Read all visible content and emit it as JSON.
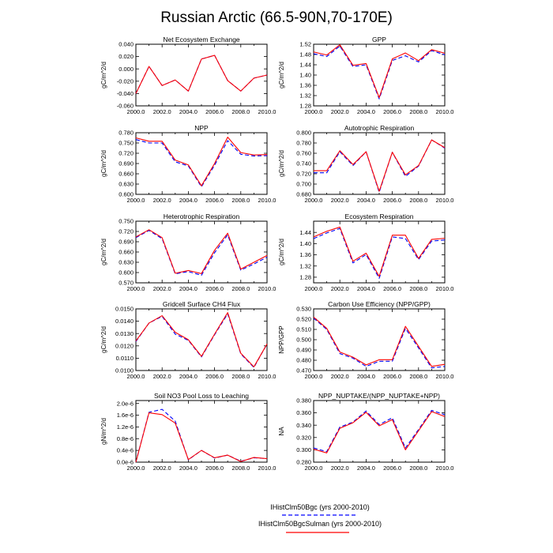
{
  "title": "Russian Arctic (66.5-90N,70-170E)",
  "colors": {
    "bgc": "#0000ff",
    "sulman": "#ff0000",
    "axis": "#000000"
  },
  "legend": {
    "items": [
      {
        "label": "IHistClm50Bgc (yrs 2000-2010)",
        "color": "#0000ff",
        "dash": true
      },
      {
        "label": "IHistClm50BgcSulman (yrs 2000-2010)",
        "color": "#ff0000",
        "dash": false
      }
    ]
  },
  "chart_data": [
    {
      "type": "line",
      "title": "Net Ecosystem Exchange",
      "ylabel": "gC/m^2/d",
      "xlim": [
        2000,
        2010
      ],
      "ylim": [
        -0.06,
        0.04
      ],
      "yticks": [
        "-0.060",
        "-0.040",
        "-0.020",
        "0.000",
        "0.020",
        "0.040"
      ],
      "xticks": [
        "2000.0",
        "2002.0",
        "2004.0",
        "2006.0",
        "2008.0",
        "2010.0"
      ],
      "x": [
        2000,
        2001,
        2002,
        2003,
        2004,
        2005,
        2006,
        2007,
        2008,
        2009,
        2010
      ],
      "series": [
        {
          "values": [
            -0.04,
            0.004,
            -0.027,
            -0.018,
            -0.036,
            0.016,
            0.022,
            -0.019,
            -0.036,
            -0.015,
            -0.01
          ]
        },
        {
          "values": [
            -0.04,
            0.004,
            -0.027,
            -0.018,
            -0.036,
            0.016,
            0.022,
            -0.019,
            -0.036,
            -0.015,
            -0.01
          ]
        }
      ]
    },
    {
      "type": "line",
      "title": "GPP",
      "ylabel": "gC/m^2/d",
      "xlim": [
        2000,
        2010
      ],
      "ylim": [
        1.28,
        1.52
      ],
      "yticks": [
        "1.28",
        "1.32",
        "1.36",
        "1.40",
        "1.44",
        "1.48",
        "1.52"
      ],
      "xticks": [
        "2000.0",
        "2002.0",
        "2004.0",
        "2006.0",
        "2008.0",
        "2010.0"
      ],
      "x": [
        2000,
        2001,
        2002,
        2003,
        2004,
        2005,
        2006,
        2007,
        2008,
        2009,
        2010
      ],
      "series": [
        {
          "values": [
            1.483,
            1.472,
            1.513,
            1.433,
            1.44,
            1.307,
            1.457,
            1.475,
            1.451,
            1.495,
            1.479
          ]
        },
        {
          "values": [
            1.49,
            1.478,
            1.518,
            1.438,
            1.445,
            1.312,
            1.463,
            1.486,
            1.456,
            1.499,
            1.485
          ]
        }
      ]
    },
    {
      "type": "line",
      "title": "NPP",
      "ylabel": "gC/m^2/d",
      "xlim": [
        2000,
        2010
      ],
      "ylim": [
        0.6,
        0.78
      ],
      "yticks": [
        "0.600",
        "0.630",
        "0.660",
        "0.690",
        "0.720",
        "0.750",
        "0.780"
      ],
      "xticks": [
        "2000.0",
        "2002.0",
        "2004.0",
        "2006.0",
        "2008.0",
        "2010.0"
      ],
      "x": [
        2000,
        2001,
        2002,
        2003,
        2004,
        2005,
        2006,
        2007,
        2008,
        2009,
        2010
      ],
      "series": [
        {
          "values": [
            0.76,
            0.75,
            0.75,
            0.695,
            0.683,
            0.622,
            0.685,
            0.757,
            0.717,
            0.712,
            0.713
          ]
        },
        {
          "values": [
            0.765,
            0.755,
            0.755,
            0.7,
            0.686,
            0.625,
            0.69,
            0.767,
            0.722,
            0.715,
            0.716
          ]
        }
      ]
    },
    {
      "type": "line",
      "title": "Autotrophic Respiration",
      "ylabel": "gC/m^2/d",
      "xlim": [
        2000,
        2010
      ],
      "ylim": [
        0.68,
        0.8
      ],
      "yticks": [
        "0.680",
        "0.700",
        "0.720",
        "0.740",
        "0.760",
        "0.780",
        "0.800"
      ],
      "xticks": [
        "2000.0",
        "2002.0",
        "2004.0",
        "2006.0",
        "2008.0",
        "2010.0"
      ],
      "x": [
        2000,
        2001,
        2002,
        2003,
        2004,
        2005,
        2006,
        2007,
        2008,
        2009,
        2010
      ],
      "series": [
        {
          "values": [
            0.722,
            0.722,
            0.763,
            0.736,
            0.763,
            0.684,
            0.762,
            0.715,
            0.735,
            0.786,
            0.77
          ]
        },
        {
          "values": [
            0.726,
            0.726,
            0.765,
            0.738,
            0.763,
            0.686,
            0.762,
            0.718,
            0.736,
            0.786,
            0.771
          ]
        }
      ]
    },
    {
      "type": "line",
      "title": "Heterotrophic Respiration",
      "ylabel": "gC/m^2/d",
      "xlim": [
        2000,
        2010
      ],
      "ylim": [
        0.57,
        0.75
      ],
      "yticks": [
        "0.570",
        "0.600",
        "0.630",
        "0.660",
        "0.690",
        "0.720",
        "0.750"
      ],
      "xticks": [
        "2000.0",
        "2002.0",
        "2004.0",
        "2006.0",
        "2008.0",
        "2010.0"
      ],
      "x": [
        2000,
        2001,
        2002,
        2003,
        2004,
        2005,
        2006,
        2007,
        2008,
        2009,
        2010
      ],
      "series": [
        {
          "values": [
            0.702,
            0.723,
            0.699,
            0.596,
            0.603,
            0.592,
            0.658,
            0.71,
            0.607,
            0.625,
            0.645
          ]
        },
        {
          "values": [
            0.704,
            0.725,
            0.702,
            0.598,
            0.606,
            0.597,
            0.665,
            0.715,
            0.61,
            0.63,
            0.65
          ]
        }
      ]
    },
    {
      "type": "line",
      "title": "Ecosystem Respiration",
      "ylabel": "gC/m^2/d",
      "xlim": [
        2000,
        2010
      ],
      "ylim": [
        1.26,
        1.48
      ],
      "yticks": [
        "1.28",
        "1.32",
        "1.36",
        "1.40",
        "1.44"
      ],
      "xticks": [
        "2000.0",
        "2002.0",
        "2004.0",
        "2006.0",
        "2008.0",
        "2010.0"
      ],
      "x": [
        2000,
        2001,
        2002,
        2003,
        2004,
        2005,
        2006,
        2007,
        2008,
        2009,
        2010
      ],
      "series": [
        {
          "values": [
            1.418,
            1.438,
            1.454,
            1.331,
            1.361,
            1.276,
            1.424,
            1.418,
            1.343,
            1.409,
            1.413
          ]
        },
        {
          "values": [
            1.424,
            1.444,
            1.459,
            1.337,
            1.366,
            1.283,
            1.43,
            1.43,
            1.347,
            1.415,
            1.419
          ]
        }
      ]
    },
    {
      "type": "line",
      "title": "Gridcell Surface CH4 Flux",
      "ylabel": "gC/m^2/d",
      "xlim": [
        2000,
        2010
      ],
      "ylim": [
        0.01,
        0.015
      ],
      "yticks": [
        "0.0100",
        "0.0110",
        "0.0120",
        "0.0130",
        "0.0140",
        "0.0150"
      ],
      "xticks": [
        "2000.0",
        "2002.0",
        "2004.0",
        "2006.0",
        "2008.0",
        "2010.0"
      ],
      "x": [
        2000,
        2001,
        2002,
        2003,
        2004,
        2005,
        2006,
        2007,
        2008,
        2009,
        2010
      ],
      "series": [
        {
          "values": [
            0.01235,
            0.01385,
            0.0144,
            0.01295,
            0.01245,
            0.0111,
            0.0129,
            0.0146,
            0.01135,
            0.01025,
            0.01215
          ]
        },
        {
          "values": [
            0.0124,
            0.01385,
            0.01445,
            0.0131,
            0.0125,
            0.01115,
            0.01295,
            0.0147,
            0.0114,
            0.0103,
            0.01215
          ]
        }
      ]
    },
    {
      "type": "line",
      "title": "Carbon Use Efficiency (NPP/GPP)",
      "ylabel": "NPP/GPP",
      "xlim": [
        2000,
        2010
      ],
      "ylim": [
        0.47,
        0.53
      ],
      "yticks": [
        "0.470",
        "0.480",
        "0.490",
        "0.500",
        "0.510",
        "0.520",
        "0.530"
      ],
      "xticks": [
        "2000.0",
        "2002.0",
        "2004.0",
        "2006.0",
        "2008.0",
        "2010.0"
      ],
      "x": [
        2000,
        2001,
        2002,
        2003,
        2004,
        2005,
        2006,
        2007,
        2008,
        2009,
        2010
      ],
      "series": [
        {
          "values": [
            0.521,
            0.51,
            0.4865,
            0.482,
            0.474,
            0.479,
            0.479,
            0.511,
            0.492,
            0.4725,
            0.474
          ]
        },
        {
          "values": [
            0.522,
            0.511,
            0.488,
            0.483,
            0.4755,
            0.4805,
            0.4805,
            0.513,
            0.4935,
            0.474,
            0.476
          ]
        }
      ]
    },
    {
      "type": "line",
      "title": "Soil NO3 Pool Loss to Leaching",
      "ylabel": "gN/m^2/d",
      "xlim": [
        2000,
        2010
      ],
      "ylim": [
        0,
        2.1e-06
      ],
      "yticks": [
        "0.0e-6",
        "0.4e-6",
        "0.8e-6",
        "1.2e-6",
        "1.6e-6",
        "2.0e-6"
      ],
      "xticks": [
        "2000.0",
        "2002.0",
        "2004.0",
        "2006.0",
        "2008.0",
        "2010.0"
      ],
      "x": [
        2000,
        2001,
        2002,
        2003,
        2004,
        2005,
        2006,
        2007,
        2008,
        2009,
        2010
      ],
      "series": [
        {
          "values": [
            0.0,
            1.7e-06,
            1.8e-06,
            1.4e-06,
            8e-08,
            4e-07,
            1.4e-07,
            2.4e-07,
            3e-08,
            1.5e-07,
            1.2e-07
          ]
        },
        {
          "values": [
            0.0,
            1.68e-06,
            1.62e-06,
            1.33e-06,
            9e-08,
            4e-07,
            1.5e-07,
            2.4e-07,
            2e-08,
            1.6e-07,
            1.2e-07
          ]
        }
      ]
    },
    {
      "type": "line",
      "title": "NPP_NUPTAKE/(NPP_NUPTAKE+NPP)",
      "ylabel": "NA",
      "xlim": [
        2000,
        2010
      ],
      "ylim": [
        0.28,
        0.38
      ],
      "yticks": [
        "0.280",
        "0.300",
        "0.320",
        "0.340",
        "0.360",
        "0.380"
      ],
      "xticks": [
        "2000.0",
        "2002.0",
        "2004.0",
        "2006.0",
        "2008.0",
        "2010.0"
      ],
      "x": [
        2000,
        2001,
        2002,
        2003,
        2004,
        2005,
        2006,
        2007,
        2008,
        2009,
        2010
      ],
      "series": [
        {
          "values": [
            0.303,
            0.297,
            0.337,
            0.345,
            0.363,
            0.341,
            0.352,
            0.303,
            0.333,
            0.364,
            0.357
          ]
        },
        {
          "values": [
            0.301,
            0.295,
            0.335,
            0.344,
            0.361,
            0.339,
            0.349,
            0.3,
            0.331,
            0.362,
            0.354
          ]
        }
      ]
    }
  ]
}
